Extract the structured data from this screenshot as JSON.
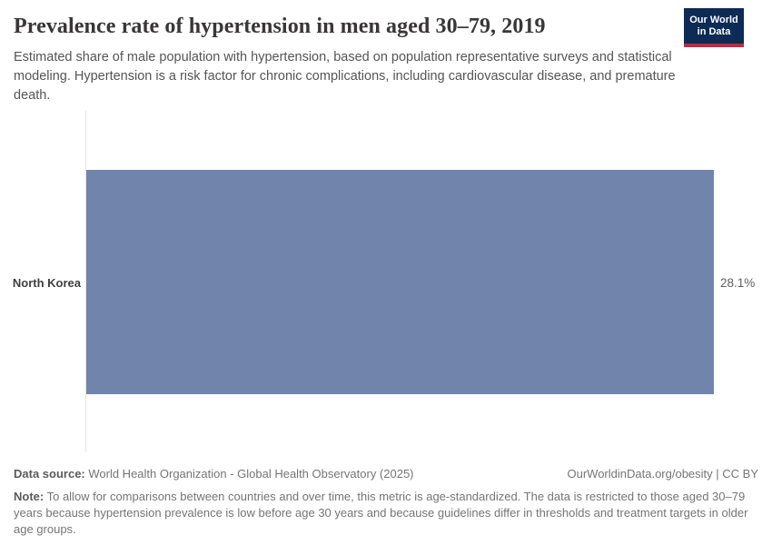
{
  "header": {
    "title": "Prevalence rate of hypertension in men aged 30–79, 2019",
    "subtitle": "Estimated share of male population with hypertension, based on population representative surveys and statistical modeling. Hypertension is a risk factor for chronic complications, including cardiovascular disease, and premature death.",
    "logo": {
      "line1": "Our World",
      "line2": "in Data"
    }
  },
  "chart_data": {
    "type": "bar",
    "orientation": "horizontal",
    "title": "Prevalence rate of hypertension in men aged 30–79, 2019",
    "categories": [
      "North Korea"
    ],
    "values": [
      28.1
    ],
    "value_labels": [
      "28.1%"
    ],
    "unit": "%",
    "xlabel": "",
    "ylabel": "",
    "xlim": [
      0,
      28.1
    ],
    "grid": false,
    "legend": false,
    "bar_color": "#7185ac"
  },
  "footer": {
    "datasource_label": "Data source:",
    "datasource_text": " World Health Organization - Global Health Observatory (2025)",
    "rights": "OurWorldinData.org/obesity | CC BY",
    "note_label": "Note:",
    "note_text": " To allow for comparisons between countries and over time, this metric is age-standardized. The data is restricted to those aged 30–79 years because hypertension prevalence is low before age 30 years and because guidelines differ in thresholds and treatment targets in older age groups."
  },
  "colors": {
    "bar": "#7185ac",
    "logo_bg": "#0d2b55",
    "logo_accent": "#bc2d41",
    "title_text": "#383636",
    "axis_line": "#e5e5e5"
  }
}
